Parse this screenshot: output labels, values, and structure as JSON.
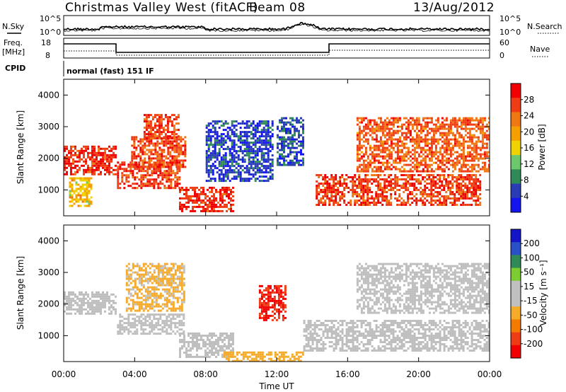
{
  "header": {
    "station": "Christmas Valley West (fitACF)",
    "beam": "Beam 08",
    "date": "13/Aug/2012"
  },
  "summary_panel": {
    "nsky_label": "N.Sky",
    "nsearch_label": "N.Search",
    "noise_top_left": "10^5",
    "noise_bottom_left": "10^0",
    "noise_top_right": "10^5",
    "noise_bottom_right": "10^0",
    "freq_label_1": "Freq.",
    "freq_label_2": "[MHz]",
    "freq_top": "18",
    "freq_bottom": "8",
    "nave_label": "Nave",
    "nave_top": "60",
    "nave_bottom": "0",
    "cpid_label": "CPID",
    "cpid_value": "normal (fast) 151 IF"
  },
  "colors": {
    "power": [
      "#1414f0",
      "#2a3cb4",
      "#2e8b57",
      "#6dc86d",
      "#f0d200",
      "#f5a000",
      "#f07814",
      "#f03c14",
      "#f00000"
    ],
    "velocity": [
      "#f00000",
      "#f03c14",
      "#f57a00",
      "#f5aa28",
      "#c0c0c0",
      "#c0c0c0",
      "#7ccd32",
      "#2e8b57",
      "#2a50c8",
      "#1414c8"
    ],
    "ground_scatter": "#bebebe"
  },
  "chart_data": [
    {
      "type": "heatmap",
      "name": "power",
      "ylabel": "Slant Range [km]",
      "yticks": [
        "4000",
        "3000",
        "2000",
        "1000"
      ],
      "ylim": [
        180,
        4500
      ],
      "colorbar_label": "Power [dB]",
      "colorbar_ticks": [
        "28",
        "24",
        "20",
        "16",
        "12",
        "8",
        "4"
      ],
      "colorbar_range": [
        0,
        32
      ],
      "regions": [
        {
          "x0": 0.0,
          "x1": 2.9,
          "y0": 1500,
          "y1": 2400,
          "level": 28
        },
        {
          "x0": 0.3,
          "x1": 1.5,
          "y0": 500,
          "y1": 1400,
          "level": 18
        },
        {
          "x0": 3.0,
          "x1": 6.5,
          "y0": 1050,
          "y1": 1900,
          "level": 27
        },
        {
          "x0": 3.8,
          "x1": 6.8,
          "y0": 1700,
          "y1": 2700,
          "level": 26
        },
        {
          "x0": 4.5,
          "x1": 6.5,
          "y0": 2600,
          "y1": 3400,
          "level": 27
        },
        {
          "x0": 6.5,
          "x1": 9.5,
          "y0": 300,
          "y1": 1100,
          "level": 28
        },
        {
          "x0": 8.0,
          "x1": 11.8,
          "y0": 1300,
          "y1": 3200,
          "level": 5
        },
        {
          "x0": 12.0,
          "x1": 13.5,
          "y0": 1800,
          "y1": 3300,
          "level": 6
        },
        {
          "x0": 14.2,
          "x1": 23.5,
          "y0": 500,
          "y1": 1500,
          "level": 27
        },
        {
          "x0": 16.5,
          "x1": 24.0,
          "y0": 1600,
          "y1": 3300,
          "level": 25
        }
      ]
    },
    {
      "type": "heatmap",
      "name": "velocity",
      "ylabel": "Slant Range [km]",
      "yticks": [
        "4000",
        "3000",
        "2000",
        "1000"
      ],
      "ylim": [
        180,
        4500
      ],
      "colorbar_label": "Velocity [m s⁻¹]",
      "colorbar_ticks": [
        "200",
        "100",
        "50",
        "15",
        "-15",
        "-50",
        "-100",
        "-200"
      ],
      "colorbar_range": [
        -250,
        250
      ],
      "regions": [
        {
          "x0": 0.0,
          "x1": 2.9,
          "y0": 1700,
          "y1": 2400,
          "value": 0,
          "ground": true
        },
        {
          "x0": 3.0,
          "x1": 6.8,
          "y0": 1050,
          "y1": 1700,
          "value": 0,
          "ground": true
        },
        {
          "x0": 3.5,
          "x1": 6.8,
          "y0": 1800,
          "y1": 3300,
          "value": -60
        },
        {
          "x0": 6.5,
          "x1": 9.5,
          "y0": 300,
          "y1": 1100,
          "value": 0,
          "ground": true
        },
        {
          "x0": 9.0,
          "x1": 13.5,
          "y0": 200,
          "y1": 500,
          "value": -70
        },
        {
          "x0": 11.0,
          "x1": 12.5,
          "y0": 1500,
          "y1": 2600,
          "value": -200
        },
        {
          "x0": 13.5,
          "x1": 24.0,
          "y0": 500,
          "y1": 1500,
          "value": 0,
          "ground": true
        },
        {
          "x0": 16.5,
          "x1": 24.0,
          "y0": 1700,
          "y1": 3300,
          "value": 0,
          "ground": true
        }
      ]
    }
  ],
  "xaxis": {
    "label": "Time UT",
    "ticks": [
      "00:00",
      "04:00",
      "08:00",
      "12:00",
      "16:00",
      "20:00",
      "00:00"
    ],
    "range_hours": [
      0,
      24
    ]
  }
}
